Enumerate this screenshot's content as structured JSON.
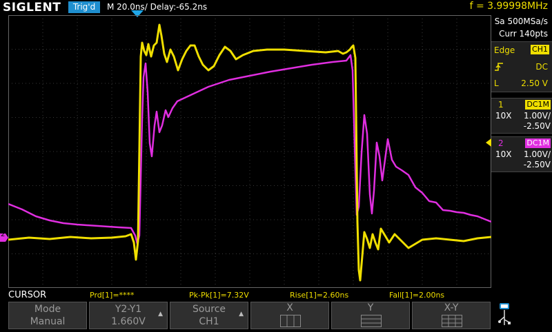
{
  "header": {
    "brand": "SIGLENT",
    "trigger_status": "Trig'd",
    "timebase": "M 20.0ns/",
    "delay": "Delay:-65.2ns",
    "frequency": "f = 3.99998MHz"
  },
  "acquisition": {
    "sample_rate": "Sa 500MSa/s",
    "curr_points": "Curr 140pts"
  },
  "trigger_panel": {
    "type_label": "Edge",
    "source": "CH1",
    "coupling": "DC",
    "level_label": "L",
    "level": "2.50 V",
    "slope_icon": "rising-edge-icon"
  },
  "channels": [
    {
      "number": "1",
      "coupling": "DC1M",
      "probe": "10X",
      "scale": "1.00V/",
      "offset": "-2.50V",
      "color": "#f0df00"
    },
    {
      "number": "2",
      "coupling": "DC1M",
      "probe": "10X",
      "scale": "1.00V/",
      "offset": "-2.50V",
      "color": "#e02ee0"
    }
  ],
  "markers": {
    "ch2_ground": "2"
  },
  "cursor_bar": {
    "title": "CURSOR",
    "measurements": [
      "Prd[1]=****",
      "Pk-Pk[1]=7.32V",
      "Rise[1]=2.60ns",
      "Fall[1]=2.00ns"
    ]
  },
  "softkeys": [
    {
      "top": "Mode",
      "bottom": "Manual",
      "arrow": false
    },
    {
      "top": "Y2-Y1",
      "bottom": "1.660V",
      "arrow": true
    },
    {
      "top": "Source",
      "bottom": "CH1",
      "arrow": true
    },
    {
      "top": "X",
      "bottom": "",
      "arrow": false
    },
    {
      "top": "Y",
      "bottom": "",
      "arrow": false
    },
    {
      "top": "X-Y",
      "bottom": "",
      "arrow": false
    }
  ],
  "colors": {
    "ch1": "#f0df00",
    "ch2": "#e02ee0",
    "trigger_accent": "#1f8fcf",
    "grid": "#3a3a3a"
  }
}
